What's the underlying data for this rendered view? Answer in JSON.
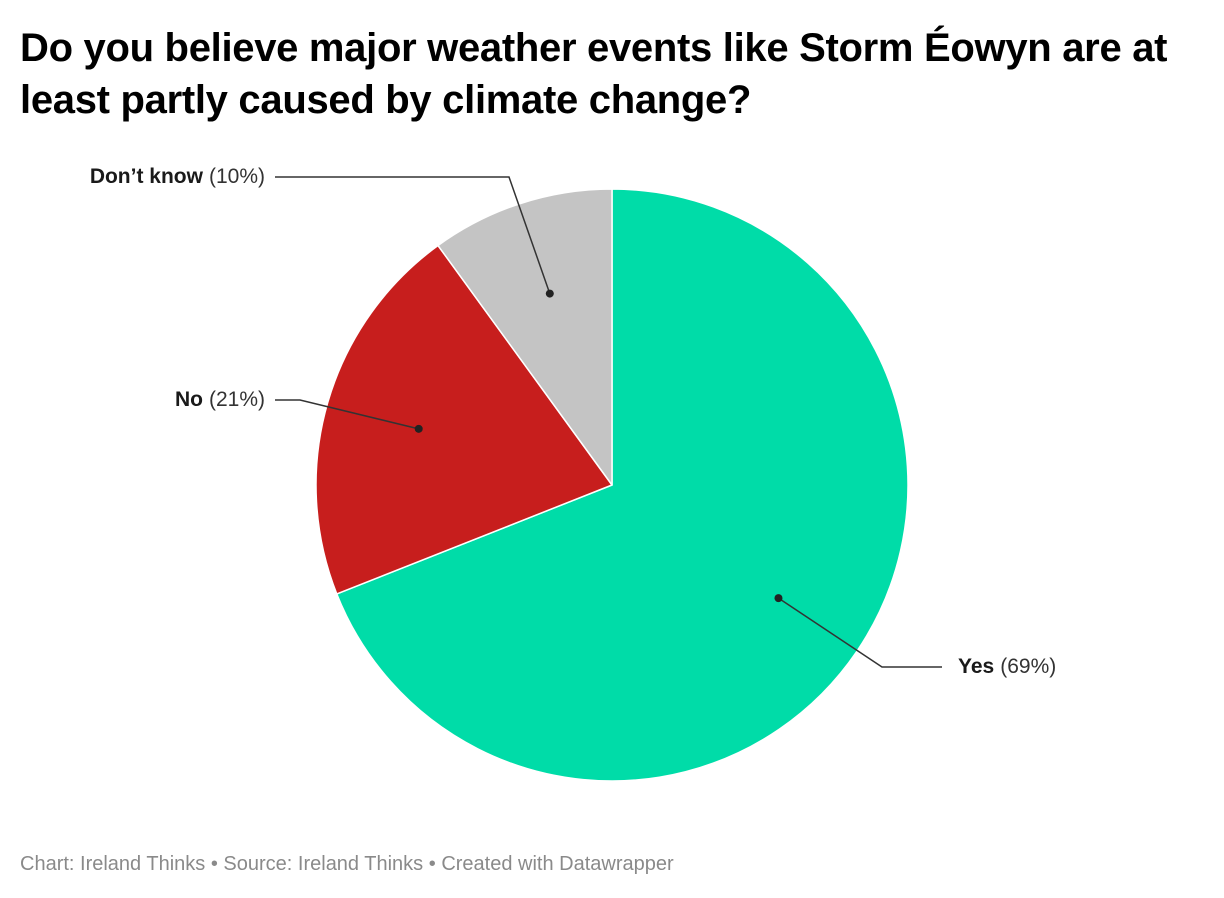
{
  "chart_data": {
    "type": "pie",
    "title": "Do you believe major weather events like Storm Éowyn are at least partly caused by climate change?",
    "slices": [
      {
        "label": "Yes",
        "value": 69,
        "value_label": "(69%)",
        "color": "#00dca8"
      },
      {
        "label": "No",
        "value": 21,
        "value_label": "(21%)",
        "color": "#c71e1d"
      },
      {
        "label": "Don’t know",
        "value": 10,
        "value_label": "(10%)",
        "color": "#c4c4c4"
      }
    ],
    "start": "12 o'clock",
    "direction": "clockwise"
  },
  "footer": {
    "chart_credit": "Chart: Ireland Thinks",
    "separator": "•",
    "source": "Source: Ireland Thinks",
    "created_with": "Created with Datawrapper"
  }
}
